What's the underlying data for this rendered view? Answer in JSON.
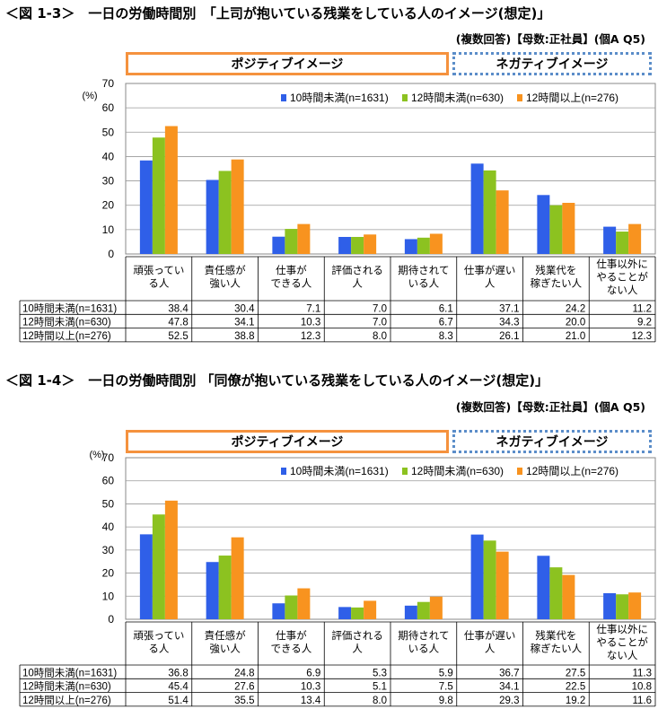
{
  "series_colors": [
    "#2f5fe8",
    "#8cc220",
    "#f8931f"
  ],
  "chart_data": [
    {
      "type": "bar",
      "title": "＜図 1-3＞　一日の労働時間別　「上司が抱いている残業をしている人のイメージ(想定)」",
      "subtitle": "(複数回答)【母数:正社員】(個A Q5)",
      "positive_label": "ポジティブイメージ",
      "negative_label": "ネガティブイメージ",
      "ylabel": "(%)",
      "ylim": [
        0,
        70
      ],
      "yticks": [
        "0",
        "10",
        "20",
        "30",
        "40",
        "50",
        "60",
        "70"
      ],
      "grid": true,
      "legend_position": "top-right",
      "categories": [
        [
          "頑張ってい",
          "る人"
        ],
        [
          "責任感が",
          "強い人"
        ],
        [
          "仕事が",
          "できる人"
        ],
        [
          "評価される",
          "人"
        ],
        [
          "期待されて",
          "いる人"
        ],
        [
          "仕事が遅い",
          "人"
        ],
        [
          "残業代を",
          "稼ぎたい人"
        ],
        [
          "仕事以外に",
          "やることが",
          "ない人"
        ]
      ],
      "series": [
        {
          "name": "10時間未満(n=1631)",
          "values": [
            38.4,
            30.4,
            7.1,
            7.0,
            6.1,
            37.1,
            24.2,
            11.2
          ],
          "labels": [
            "38.4",
            "30.4",
            "7.1",
            "7.0",
            "6.1",
            "37.1",
            "24.2",
            "11.2"
          ]
        },
        {
          "name": "12時間未満(n=630)",
          "values": [
            47.8,
            34.1,
            10.3,
            7.0,
            6.7,
            34.3,
            20.0,
            9.2
          ],
          "labels": [
            "47.8",
            "34.1",
            "10.3",
            "7.0",
            "6.7",
            "34.3",
            "20.0",
            "9.2"
          ]
        },
        {
          "name": "12時間以上(n=276)",
          "values": [
            52.5,
            38.8,
            12.3,
            8.0,
            8.3,
            26.1,
            21.0,
            12.3
          ],
          "labels": [
            "52.5",
            "38.8",
            "12.3",
            "8.0",
            "8.3",
            "26.1",
            "21.0",
            "12.3"
          ]
        }
      ]
    },
    {
      "type": "bar",
      "title": "＜図 1-4＞　一日の労働時間別 「同僚が抱いている残業をしている人のイメージ(想定)」",
      "subtitle": "(複数回答)【母数:正社員】(個A Q5)",
      "positive_label": "ポジティブイメージ",
      "negative_label": "ネガティブイメージ",
      "ylabel": "(%)",
      "ylim": [
        0,
        70
      ],
      "yticks": [
        "0",
        "10",
        "20",
        "30",
        "40",
        "50",
        "60",
        "70"
      ],
      "grid": true,
      "legend_position": "top-right",
      "categories": [
        [
          "頑張ってい",
          "る人"
        ],
        [
          "責任感が",
          "強い人"
        ],
        [
          "仕事が",
          "できる人"
        ],
        [
          "評価される",
          "人"
        ],
        [
          "期待されて",
          "いる人"
        ],
        [
          "仕事が遅い",
          "人"
        ],
        [
          "残業代を",
          "稼ぎたい人"
        ],
        [
          "仕事以外に",
          "やることが",
          "ない人"
        ]
      ],
      "series": [
        {
          "name": "10時間未満(n=1631)",
          "values": [
            36.8,
            24.8,
            6.9,
            5.3,
            5.9,
            36.7,
            27.5,
            11.3
          ],
          "labels": [
            "36.8",
            "24.8",
            "6.9",
            "5.3",
            "5.9",
            "36.7",
            "27.5",
            "11.3"
          ]
        },
        {
          "name": "12時間未満(n=630)",
          "values": [
            45.4,
            27.6,
            10.3,
            5.1,
            7.5,
            34.1,
            22.5,
            10.8
          ],
          "labels": [
            "45.4",
            "27.6",
            "10.3",
            "5.1",
            "7.5",
            "34.1",
            "22.5",
            "10.8"
          ]
        },
        {
          "name": "12時間以上(n=276)",
          "values": [
            51.4,
            35.5,
            13.4,
            8.0,
            9.8,
            29.3,
            19.2,
            11.6
          ],
          "labels": [
            "51.4",
            "35.5",
            "13.4",
            "8.0",
            "9.8",
            "29.3",
            "19.2",
            "11.6"
          ]
        }
      ]
    }
  ]
}
